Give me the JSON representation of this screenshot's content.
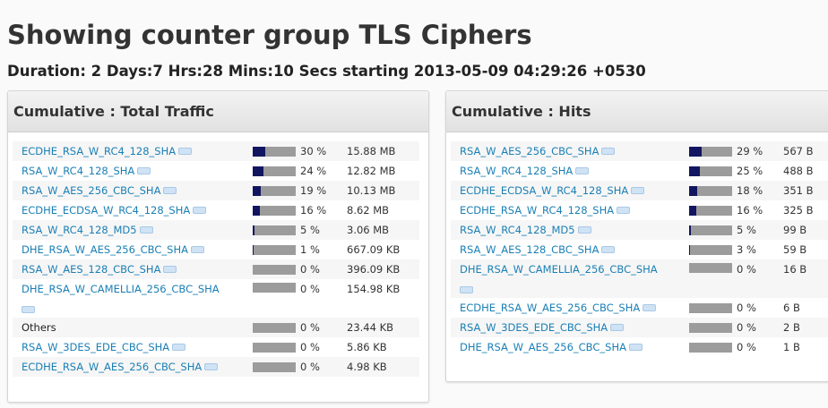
{
  "page": {
    "title": "Showing counter group TLS Ciphers",
    "duration": "Duration: 2 Days:7 Hrs:28 Mins:10 Secs starting 2013-05-09 04:29:26 +0530"
  },
  "colors": {
    "bar_fill": "#121660",
    "bar_track": "#9c9c9c",
    "link": "#1a7fb5"
  },
  "panels": [
    {
      "heading": "Cumulative : Total Traffic",
      "rows": [
        {
          "name": "ECDHE_RSA_W_RC4_128_SHA",
          "pct": "30 %",
          "fraction": 0.3,
          "value": "15.88 MB",
          "link": true
        },
        {
          "name": "RSA_W_RC4_128_SHA",
          "pct": "24 %",
          "fraction": 0.24,
          "value": "12.82 MB",
          "link": true
        },
        {
          "name": "RSA_W_AES_256_CBC_SHA",
          "pct": "19 %",
          "fraction": 0.19,
          "value": "10.13 MB",
          "link": true
        },
        {
          "name": "ECDHE_ECDSA_W_RC4_128_SHA",
          "pct": "16 %",
          "fraction": 0.16,
          "value": "8.62 MB",
          "link": true
        },
        {
          "name": "RSA_W_RC4_128_MD5",
          "pct": "5 %",
          "fraction": 0.05,
          "value": "3.06 MB",
          "link": true
        },
        {
          "name": "DHE_RSA_W_AES_256_CBC_SHA",
          "pct": "1 %",
          "fraction": 0.01,
          "value": "667.09 KB",
          "link": true
        },
        {
          "name": "RSA_W_AES_128_CBC_SHA",
          "pct": "0 %",
          "fraction": 0.0,
          "value": "396.09 KB",
          "link": true
        },
        {
          "name": "DHE_RSA_W_CAMELLIA_256_CBC_SHA",
          "pct": "0 %",
          "fraction": 0.0,
          "value": "154.98 KB",
          "link": true,
          "wrap": true
        },
        {
          "name": "Others",
          "pct": "0 %",
          "fraction": 0.0,
          "value": "23.44 KB",
          "link": false
        },
        {
          "name": "RSA_W_3DES_EDE_CBC_SHA",
          "pct": "0 %",
          "fraction": 0.0,
          "value": "5.86 KB",
          "link": true
        },
        {
          "name": "ECDHE_RSA_W_AES_256_CBC_SHA",
          "pct": "0 %",
          "fraction": 0.0,
          "value": "4.98 KB",
          "link": true
        }
      ]
    },
    {
      "heading": "Cumulative : Hits",
      "rows": [
        {
          "name": "RSA_W_AES_256_CBC_SHA",
          "pct": "29 %",
          "fraction": 0.29,
          "value": "567 B",
          "link": true
        },
        {
          "name": "RSA_W_RC4_128_SHA",
          "pct": "25 %",
          "fraction": 0.25,
          "value": "488 B",
          "link": true
        },
        {
          "name": "ECDHE_ECDSA_W_RC4_128_SHA",
          "pct": "18 %",
          "fraction": 0.18,
          "value": "351 B",
          "link": true
        },
        {
          "name": "ECDHE_RSA_W_RC4_128_SHA",
          "pct": "16 %",
          "fraction": 0.16,
          "value": "325 B",
          "link": true
        },
        {
          "name": "RSA_W_RC4_128_MD5",
          "pct": "5 %",
          "fraction": 0.05,
          "value": "99 B",
          "link": true
        },
        {
          "name": "RSA_W_AES_128_CBC_SHA",
          "pct": "3 %",
          "fraction": 0.03,
          "value": "59 B",
          "link": true
        },
        {
          "name": "DHE_RSA_W_CAMELLIA_256_CBC_SHA",
          "pct": "0 %",
          "fraction": 0.0,
          "value": "16 B",
          "link": true,
          "wrap": true
        },
        {
          "name": "ECDHE_RSA_W_AES_256_CBC_SHA",
          "pct": "0 %",
          "fraction": 0.0,
          "value": "6 B",
          "link": true
        },
        {
          "name": "RSA_W_3DES_EDE_CBC_SHA",
          "pct": "0 %",
          "fraction": 0.0,
          "value": "2 B",
          "link": true
        },
        {
          "name": "DHE_RSA_W_AES_256_CBC_SHA",
          "pct": "0 %",
          "fraction": 0.0,
          "value": "1 B",
          "link": true
        }
      ]
    }
  ]
}
